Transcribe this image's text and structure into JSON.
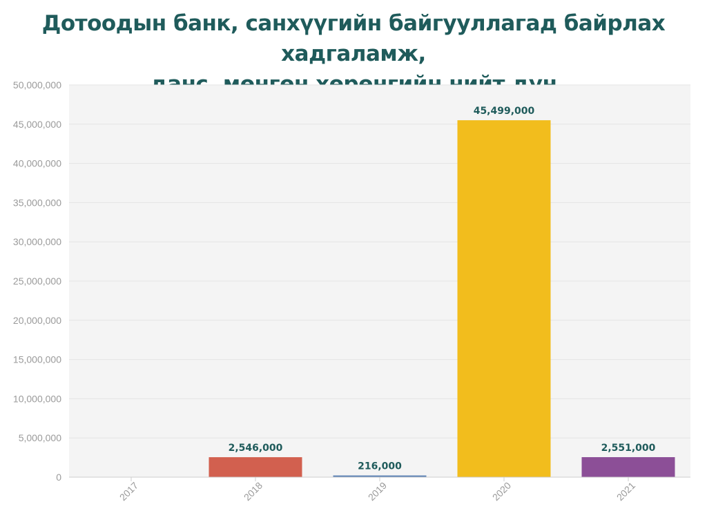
{
  "chart_data": {
    "type": "bar",
    "title_lines": [
      "Дотоодын банк, санхүүгийн байгууллагад байрлах хадгаламж,",
      "данс, мөнгөн хөрөнгийн нийт дүн"
    ],
    "categories": [
      "2017",
      "2018",
      "2019",
      "2020",
      "2021"
    ],
    "values": [
      0,
      2546000,
      216000,
      45499000,
      2551000
    ],
    "data_labels": [
      "",
      "2,546,000",
      "216,000",
      "45,499,000",
      "2,551,000"
    ],
    "colors": [
      "#5b82b5",
      "#d2604f",
      "#5b82b5",
      "#f2bd1d",
      "#8c4f97"
    ],
    "ylim": [
      0,
      50000000
    ],
    "yticks": [
      0,
      5000000,
      10000000,
      15000000,
      20000000,
      25000000,
      30000000,
      35000000,
      40000000,
      45000000,
      50000000
    ],
    "ytick_labels": [
      "0",
      "5,000,000",
      "10,000,000",
      "15,000,000",
      "20,000,000",
      "25,000,000",
      "30,000,000",
      "35,000,000",
      "40,000,000",
      "45,000,000",
      "50,000,000"
    ],
    "xlabel": "",
    "ylabel": "",
    "grid": true,
    "legend": "none"
  }
}
